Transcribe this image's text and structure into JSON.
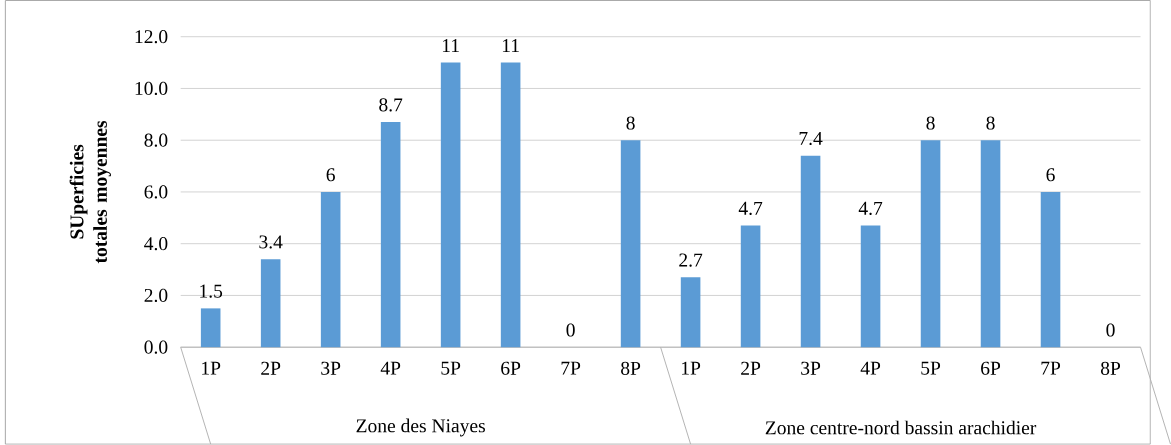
{
  "chart_data": {
    "type": "bar",
    "ylabel": "SUperficies totales moyennes",
    "categories": [
      "1P",
      "2P",
      "3P",
      "4P",
      "5P",
      "6P",
      "7P",
      "8P",
      "1P",
      "2P",
      "3P",
      "4P",
      "5P",
      "6P",
      "7P",
      "8P"
    ],
    "values": [
      1.5,
      3.4,
      6,
      8.7,
      11,
      11,
      0,
      8,
      2.7,
      4.7,
      7.4,
      4.7,
      8,
      8,
      6,
      0
    ],
    "color": "#5b9bd5",
    "data_labels": true,
    "grid": "y",
    "ylim": [
      0,
      12
    ],
    "yticks": [
      {
        "value": 0,
        "label": "0.0"
      },
      {
        "value": 2,
        "label": "2.0"
      },
      {
        "value": 4,
        "label": "4.0"
      },
      {
        "value": 6,
        "label": "6.0"
      },
      {
        "value": 8,
        "label": "8.0"
      },
      {
        "value": 10,
        "label": "10.0"
      },
      {
        "value": 12,
        "label": "12.0"
      }
    ],
    "annotations": [
      "Zone des Niayes",
      "Zone centre-nord bassin arachidier"
    ]
  }
}
